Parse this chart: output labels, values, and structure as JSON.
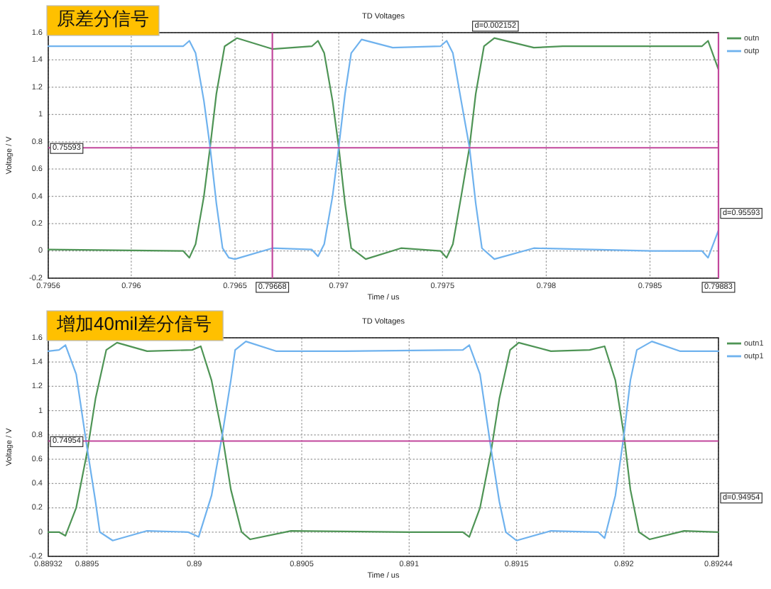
{
  "chart_data": [
    {
      "type": "line",
      "subtitle": "原差分信号",
      "title": "TD Voltages",
      "xlabel": "Time / us",
      "ylabel": "Voltage / V",
      "xlim": [
        0.7956,
        0.79883
      ],
      "xticks": [
        0.7956,
        0.796,
        0.7965,
        0.797,
        0.7975,
        0.798,
        0.7985
      ],
      "ylim": [
        -0.2,
        1.6
      ],
      "yticks": [
        -0.2,
        0,
        0.2,
        0.4,
        0.6,
        0.8,
        1,
        1.2,
        1.4,
        1.6
      ],
      "grid": true,
      "legend": "top right",
      "series": [
        {
          "name": "outn",
          "color": "#4e9455",
          "x": [
            0.7956,
            0.79625,
            0.79628,
            0.79631,
            0.79635,
            0.79638,
            0.79641,
            0.79645,
            0.79651,
            0.79668,
            0.79687,
            0.7969,
            0.79693,
            0.79697,
            0.797,
            0.79703,
            0.79706,
            0.79713,
            0.7973,
            0.79749,
            0.79752,
            0.79755,
            0.79759,
            0.79763,
            0.79766,
            0.7977,
            0.79775,
            0.79794,
            0.79808,
            0.79875,
            0.79878,
            0.79883
          ],
          "values": [
            0.01,
            0.0,
            -0.05,
            0.05,
            0.4,
            0.76,
            1.15,
            1.5,
            1.56,
            1.48,
            1.5,
            1.54,
            1.45,
            1.1,
            0.76,
            0.35,
            0.02,
            -0.06,
            0.02,
            0.0,
            -0.05,
            0.05,
            0.4,
            0.76,
            1.15,
            1.5,
            1.56,
            1.49,
            1.5,
            1.5,
            1.54,
            1.33
          ]
        },
        {
          "name": "outp",
          "color": "#6fb2ee",
          "x": [
            0.7956,
            0.79625,
            0.79628,
            0.79631,
            0.79635,
            0.79638,
            0.79641,
            0.79644,
            0.79647,
            0.7965,
            0.79668,
            0.79687,
            0.7969,
            0.79693,
            0.79697,
            0.797,
            0.79703,
            0.79706,
            0.79711,
            0.79726,
            0.79749,
            0.79752,
            0.79755,
            0.79759,
            0.79763,
            0.79766,
            0.79769,
            0.79775,
            0.79794,
            0.79851,
            0.79875,
            0.79878,
            0.79883
          ],
          "values": [
            1.5,
            1.5,
            1.54,
            1.45,
            1.1,
            0.76,
            0.35,
            0.02,
            -0.05,
            -0.06,
            0.02,
            0.01,
            -0.04,
            0.05,
            0.4,
            0.76,
            1.15,
            1.45,
            1.55,
            1.49,
            1.5,
            1.54,
            1.45,
            1.1,
            0.76,
            0.35,
            0.02,
            -0.06,
            0.02,
            0.0,
            0.0,
            -0.05,
            0.15
          ]
        }
      ],
      "ref_lines": [
        {
          "axis": "x",
          "value": 0.79668,
          "label": "0.79668",
          "color": "#c2479c"
        },
        {
          "axis": "x",
          "value": 0.79883,
          "label": "0.79883",
          "color": "#c2479c"
        },
        {
          "axis": "y",
          "value": 0.75593,
          "label": "0.75593",
          "color": "#c2479c"
        }
      ],
      "annotations": [
        {
          "text": "d=0.002152",
          "x": 0.797755,
          "y": 1.6
        },
        {
          "text": "d=0.95593",
          "x": 0.79883,
          "y": 0.28
        }
      ]
    },
    {
      "type": "line",
      "subtitle": "增加40mil差分信号",
      "title": "TD Voltages",
      "xlabel": "Time / us",
      "ylabel": "Voltage / V",
      "xlim": [
        0.88932,
        0.89244
      ],
      "xticks": [
        0.88932,
        0.8895,
        0.89,
        0.8905,
        0.891,
        0.8915,
        0.892,
        0.89244
      ],
      "ylim": [
        -0.2,
        1.6
      ],
      "yticks": [
        -0.2,
        0,
        0.2,
        0.4,
        0.6,
        0.8,
        1,
        1.2,
        1.4,
        1.6
      ],
      "grid": true,
      "legend": "top right",
      "series": [
        {
          "name": "outn1",
          "color": "#4e9455",
          "x": [
            0.88932,
            0.88937,
            0.8894,
            0.88945,
            0.8895,
            0.88954,
            0.88959,
            0.88964,
            0.88978,
            0.88999,
            0.89003,
            0.89008,
            0.89013,
            0.89017,
            0.89022,
            0.89026,
            0.89045,
            0.891,
            0.89125,
            0.89128,
            0.89133,
            0.89138,
            0.89142,
            0.89147,
            0.89151,
            0.89166,
            0.89184,
            0.89191,
            0.89196,
            0.892,
            0.89203,
            0.89207,
            0.89212,
            0.89228,
            0.89244
          ],
          "values": [
            0.0,
            0.0,
            -0.03,
            0.2,
            0.65,
            1.1,
            1.5,
            1.56,
            1.49,
            1.5,
            1.53,
            1.25,
            0.8,
            0.35,
            0.0,
            -0.06,
            0.01,
            0.0,
            0.0,
            -0.04,
            0.2,
            0.65,
            1.1,
            1.5,
            1.56,
            1.49,
            1.5,
            1.53,
            1.25,
            0.8,
            0.35,
            0.0,
            -0.06,
            0.01,
            0.0
          ]
        },
        {
          "name": "outp1",
          "color": "#6fb2ee",
          "x": [
            0.88932,
            0.88937,
            0.8894,
            0.88945,
            0.8895,
            0.88954,
            0.88956,
            0.88962,
            0.88978,
            0.88997,
            0.89002,
            0.89008,
            0.89013,
            0.89017,
            0.89019,
            0.89024,
            0.89038,
            0.8907,
            0.89125,
            0.89128,
            0.89133,
            0.89138,
            0.89142,
            0.89145,
            0.8915,
            0.89166,
            0.89188,
            0.89191,
            0.89196,
            0.892,
            0.89203,
            0.89206,
            0.89213,
            0.89226,
            0.89244
          ],
          "values": [
            1.49,
            1.5,
            1.54,
            1.3,
            0.7,
            0.25,
            0.0,
            -0.07,
            0.01,
            0.0,
            -0.04,
            0.3,
            0.8,
            1.25,
            1.5,
            1.57,
            1.49,
            1.49,
            1.5,
            1.54,
            1.3,
            0.7,
            0.25,
            0.0,
            -0.07,
            0.01,
            0.0,
            -0.05,
            0.3,
            0.8,
            1.25,
            1.5,
            1.57,
            1.49,
            1.49
          ]
        }
      ],
      "ref_lines": [
        {
          "axis": "y",
          "value": 0.74954,
          "label": "0.74954",
          "color": "#c2479c"
        }
      ],
      "annotations": [
        "d=0.94954"
      ]
    }
  ]
}
